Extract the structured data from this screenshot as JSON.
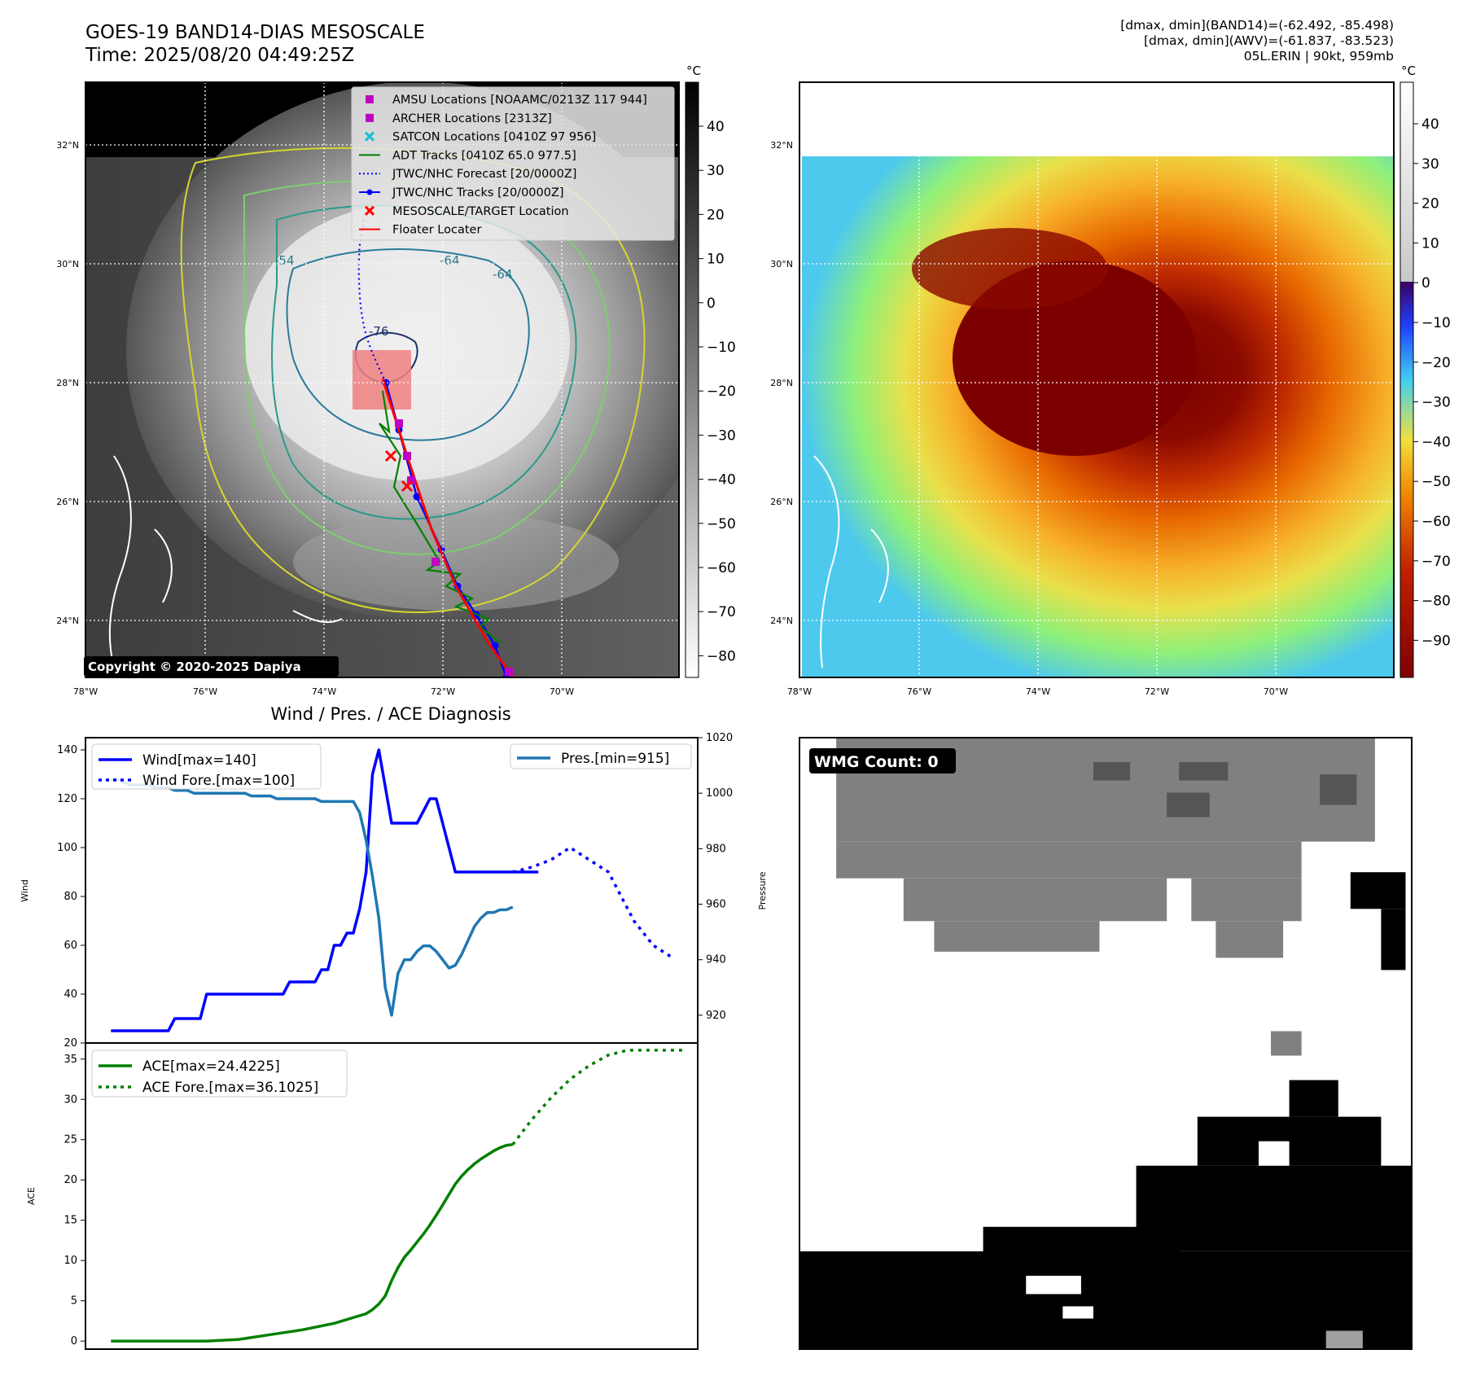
{
  "header": {
    "title": "GOES-19 BAND14-DIAS MESOSCALE",
    "time": "Time: 2025/08/20 04:49:25Z",
    "stats_band14": "[dmax, dmin](BAND14)=(-62.492, -85.498)",
    "stats_awv": "[dmax, dmin](AWV)=(-61.837, -83.523)",
    "storm": "05L.ERIN | 90kt, 959mb"
  },
  "map": {
    "lat_labels": [
      "32°N",
      "30°N",
      "28°N",
      "26°N",
      "24°N"
    ],
    "lon_labels": [
      "78°W",
      "76°W",
      "74°W",
      "72°W",
      "70°W"
    ],
    "copyright": "Copyright © 2020-2025 Dapiya",
    "contour_labels": [
      "-54",
      "-64",
      "-64",
      "-76"
    ],
    "legend": [
      {
        "label": "AMSU Locations [NOAAMC/0213Z 117 944]",
        "marker": "square",
        "color": "#c000c0"
      },
      {
        "label": "ARCHER Locations [2313Z]",
        "marker": "square",
        "color": "#c000c0"
      },
      {
        "label": "SATCON Locations [0410Z 97 956]",
        "marker": "x",
        "color": "#17becf"
      },
      {
        "label": "ADT Tracks [0410Z 65.0 977.5]",
        "marker": "line",
        "color": "#008000"
      },
      {
        "label": "JTWC/NHC Forecast [20/0000Z]",
        "marker": "dotted",
        "color": "#0000ff"
      },
      {
        "label": "JTWC/NHC Tracks [20/0000Z]",
        "marker": "line-dot",
        "color": "#0000ff"
      },
      {
        "label": "MESOSCALE/TARGET Location",
        "marker": "x",
        "color": "#ff0000"
      },
      {
        "label": "Floater Locater",
        "marker": "line",
        "color": "#ff0000"
      }
    ],
    "colorbar_gray": {
      "unit": "°C",
      "ticks": [
        "40",
        "30",
        "20",
        "10",
        "0",
        "−10",
        "−20",
        "−30",
        "−40",
        "−50",
        "−60",
        "−70",
        "−80"
      ]
    },
    "colorbar_awv": {
      "unit": "°C",
      "ticks": [
        "40",
        "30",
        "20",
        "10",
        "0",
        "−10",
        "−20",
        "−30",
        "−40",
        "−50",
        "−60",
        "−70",
        "−80",
        "−90"
      ]
    }
  },
  "diagnosis": {
    "title": "Wind / Pres. / ACE Diagnosis",
    "wind_ylabel": "Wind",
    "pres_ylabel": "Pressure",
    "ace_ylabel": "ACE",
    "legend_wind": "Wind[max=140]",
    "legend_wind_fore": "Wind Fore.[max=100]",
    "legend_pres": "Pres.[min=915]",
    "legend_ace": "ACE[max=24.4225]",
    "legend_ace_fore": "ACE Fore.[max=36.1025]"
  },
  "wmg": {
    "label": "WMG Count: 0"
  },
  "colors": {
    "wind": "#0000ff",
    "pressure": "#1f77b4",
    "ace": "#008000",
    "track_red": "#ff0000",
    "floater_box": "#f08080"
  },
  "chart_data": [
    {
      "type": "line",
      "title": "Wind / Pres. / ACE Diagnosis",
      "ylabel": "Wind",
      "ylim": [
        20,
        145
      ],
      "y2label": "Pressure",
      "y2lim": [
        910,
        1020
      ],
      "series": [
        {
          "name": "Wind[max=140]",
          "axis": "left",
          "x": [
            0,
            1,
            2,
            3,
            4,
            5,
            6,
            7,
            8,
            9,
            10,
            11,
            12,
            13,
            14,
            15,
            16,
            17,
            18,
            19,
            20,
            21,
            22,
            23,
            24,
            25,
            26,
            27,
            28,
            29,
            30,
            31,
            32,
            33,
            34,
            35,
            36,
            37,
            38,
            39,
            40,
            41,
            42,
            43,
            44,
            45,
            46,
            47,
            48,
            49,
            50,
            51,
            52,
            53,
            54,
            55,
            56,
            57,
            58,
            59,
            60,
            61,
            62,
            63,
            64,
            65,
            66,
            67
          ],
          "values": [
            25,
            25,
            25,
            25,
            25,
            25,
            25,
            25,
            25,
            25,
            30,
            30,
            30,
            30,
            30,
            40,
            40,
            40,
            40,
            40,
            40,
            40,
            40,
            40,
            40,
            40,
            40,
            40,
            45,
            45,
            45,
            45,
            45,
            50,
            50,
            60,
            60,
            65,
            65,
            75,
            90,
            130,
            140,
            125,
            110,
            110,
            110,
            110,
            110,
            115,
            120,
            120,
            110,
            100,
            90,
            90,
            90,
            90,
            90,
            90,
            90,
            90,
            90,
            90,
            90,
            90,
            90,
            90
          ]
        },
        {
          "name": "Wind Fore.[max=100]",
          "axis": "left",
          "style": "dotted",
          "x": [
            63,
            66,
            69,
            72,
            75,
            78,
            80,
            82,
            85,
            88
          ],
          "values": [
            90,
            92,
            95,
            100,
            95,
            90,
            80,
            70,
            60,
            55
          ]
        },
        {
          "name": "Pres.[min=915]",
          "axis": "right",
          "x": [
            0,
            1,
            2,
            3,
            4,
            5,
            6,
            7,
            8,
            9,
            10,
            11,
            12,
            13,
            14,
            15,
            16,
            17,
            18,
            19,
            20,
            21,
            22,
            23,
            24,
            25,
            26,
            27,
            28,
            29,
            30,
            31,
            32,
            33,
            34,
            35,
            36,
            37,
            38,
            39,
            40,
            41,
            42,
            43,
            44,
            45,
            46,
            47,
            48,
            49,
            50,
            51,
            52,
            53,
            54,
            55,
            56,
            57,
            58,
            59,
            60,
            61,
            62,
            63
          ],
          "values": [
            1005,
            1005,
            1004,
            1003,
            1003,
            1003,
            1003,
            1002,
            1002,
            1002,
            1001,
            1001,
            1001,
            1000,
            1000,
            1000,
            1000,
            1000,
            1000,
            1000,
            1000,
            1000,
            999,
            999,
            999,
            999,
            998,
            998,
            998,
            998,
            998,
            998,
            998,
            997,
            997,
            997,
            997,
            997,
            997,
            993,
            983,
            970,
            955,
            930,
            920,
            935,
            940,
            940,
            943,
            945,
            945,
            943,
            940,
            937,
            938,
            942,
            947,
            952,
            955,
            957,
            957,
            958,
            958,
            959
          ]
        }
      ]
    },
    {
      "type": "line",
      "ylabel": "ACE",
      "ylim": [
        -1,
        37
      ],
      "series": [
        {
          "name": "ACE[max=24.4225]",
          "x": [
            0,
            5,
            10,
            15,
            20,
            25,
            30,
            35,
            40,
            41,
            42,
            43,
            44,
            45,
            46,
            47,
            48,
            49,
            50,
            51,
            52,
            53,
            54,
            55,
            56,
            57,
            58,
            59,
            60,
            61,
            62,
            63
          ],
          "values": [
            0,
            0,
            0,
            0,
            0.2,
            0.8,
            1.4,
            2.2,
            3.4,
            3.9,
            4.6,
            5.6,
            7.5,
            9.1,
            10.4,
            11.3,
            12.3,
            13.3,
            14.4,
            15.6,
            16.9,
            18.2,
            19.5,
            20.5,
            21.3,
            22.0,
            22.6,
            23.1,
            23.6,
            24.0,
            24.3,
            24.4
          ]
        },
        {
          "name": "ACE Fore.[max=36.1025]",
          "style": "dotted",
          "x": [
            63,
            66,
            69,
            72,
            75,
            78,
            81,
            84,
            87,
            90
          ],
          "values": [
            24.4,
            27.5,
            30.2,
            32.5,
            34.2,
            35.5,
            36.1,
            36.1,
            36.1,
            36.1
          ]
        }
      ]
    }
  ]
}
